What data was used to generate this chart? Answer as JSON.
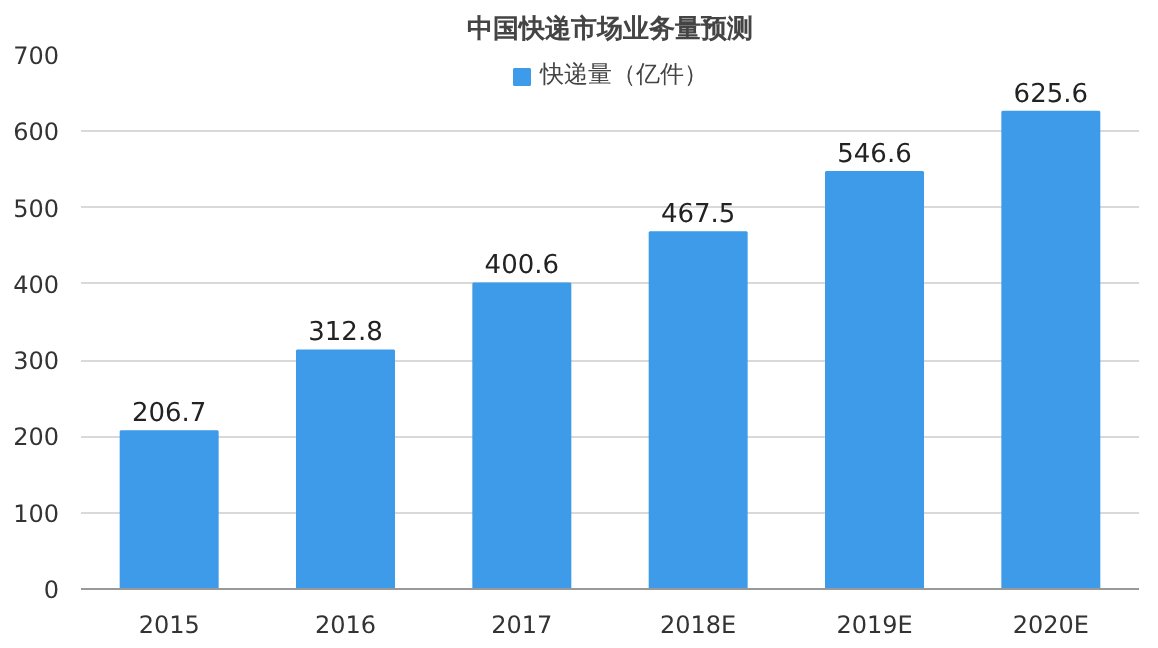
{
  "chart_data": {
    "type": "bar",
    "title": "中国快递市场业务量预测",
    "categories": [
      "2015",
      "2016",
      "2017",
      "2018E",
      "2019E",
      "2020E"
    ],
    "series": [
      {
        "name": "快递量（亿件）",
        "color": "#3d9be9",
        "values": [
          206.7,
          312.8,
          400.6,
          467.5,
          546.6,
          625.6
        ]
      }
    ],
    "ylim": [
      0,
      700
    ],
    "yticks": [
      0,
      100,
      200,
      300,
      400,
      500,
      600,
      700
    ],
    "grid": "y",
    "legend": "top",
    "data_labels": true
  }
}
